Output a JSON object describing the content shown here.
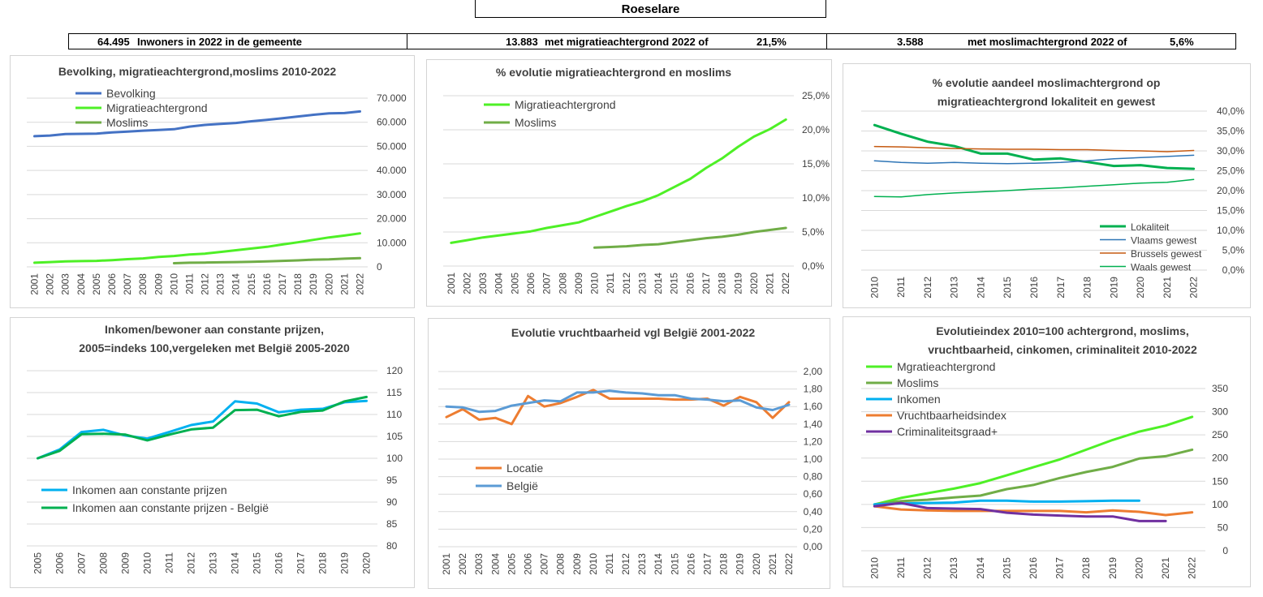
{
  "header": {
    "title": "Roeselare",
    "stats": [
      {
        "value": "64.495",
        "text": "Inwoners in 2022 in de gemeente"
      },
      {
        "value": "13.883",
        "text": "met migratieachtergrond 2022 of",
        "pct": "21,5%"
      },
      {
        "value": "3.588",
        "text": "met moslimachtergrond 2022 of",
        "pct": "5,6%"
      }
    ]
  },
  "colors": {
    "blue": "#4472c4",
    "green": "#4ef026",
    "olive": "#70ad47",
    "darkgreen": "#00b050",
    "orange": "#ed7d31",
    "darkorange": "#c55a11",
    "skyblue": "#00b0f0",
    "lightblue": "#5b9bd5",
    "purple": "#7030a0",
    "grid": "#d9d9d9"
  },
  "chart_data": [
    {
      "type": "line",
      "title": "Bevolking, migratieachtergrond,moslims  2010-2022",
      "x": [
        "2001",
        "2002",
        "2003",
        "2004",
        "2005",
        "2006",
        "2007",
        "2008",
        "2009",
        "2010",
        "2011",
        "2012",
        "2013",
        "2014",
        "2015",
        "2016",
        "2017",
        "2018",
        "2019",
        "2020",
        "2021",
        "2022"
      ],
      "ylim": [
        0,
        70000
      ],
      "yticks": [
        "0",
        "10.000",
        "20.000",
        "30.000",
        "40.000",
        "50.000",
        "60.000",
        "70.000"
      ],
      "legend_position": "top-left",
      "series": [
        {
          "name": "Bevolking",
          "color": "#4472c4",
          "values": [
            54200,
            54500,
            55100,
            55200,
            55300,
            55800,
            56100,
            56500,
            56800,
            57100,
            58200,
            58900,
            59300,
            59700,
            60400,
            61000,
            61700,
            62400,
            63100,
            63700,
            63800,
            64495
          ]
        },
        {
          "name": "Migratieachtergrond",
          "color": "#4ef026",
          "values": [
            1700,
            2000,
            2300,
            2400,
            2500,
            2800,
            3200,
            3500,
            4100,
            4500,
            5100,
            5500,
            6200,
            6900,
            7600,
            8300,
            9300,
            10200,
            11200,
            12200,
            13000,
            13883
          ]
        },
        {
          "name": "Moslims",
          "color": "#70ad47",
          "values": [
            null,
            null,
            null,
            null,
            null,
            null,
            null,
            null,
            null,
            1500,
            1700,
            1800,
            1900,
            2000,
            2100,
            2300,
            2500,
            2700,
            3000,
            3100,
            3400,
            3588
          ]
        }
      ]
    },
    {
      "type": "line",
      "title": "% evolutie migratieachtergrond  en moslims",
      "x": [
        "2001",
        "2002",
        "2003",
        "2004",
        "2005",
        "2006",
        "2007",
        "2008",
        "2009",
        "2010",
        "2011",
        "2012",
        "2013",
        "2014",
        "2015",
        "2016",
        "2017",
        "2018",
        "2019",
        "2020",
        "2021",
        "2022"
      ],
      "ylim": [
        0,
        25
      ],
      "yticks": [
        "0,0%",
        "5,0%",
        "10,0%",
        "15,0%",
        "20,0%",
        "25,0%"
      ],
      "legend_position": "top-left",
      "series": [
        {
          "name": "Migratieachtergrond",
          "color": "#4ef026",
          "values": [
            3.4,
            3.8,
            4.2,
            4.5,
            4.8,
            5.1,
            5.6,
            6.0,
            6.4,
            7.2,
            8.0,
            8.8,
            9.5,
            10.4,
            11.6,
            12.8,
            14.4,
            15.8,
            17.5,
            19.0,
            20.1,
            21.5
          ]
        },
        {
          "name": "Moslims",
          "color": "#70ad47",
          "values": [
            null,
            null,
            null,
            null,
            null,
            null,
            null,
            null,
            null,
            2.7,
            2.8,
            2.9,
            3.1,
            3.2,
            3.5,
            3.8,
            4.1,
            4.3,
            4.6,
            5.0,
            5.3,
            5.6
          ]
        }
      ]
    },
    {
      "type": "line",
      "title": "% evolutie aandeel moslimachtergrond op migratieachtergrond lokaliteit  en gewest",
      "title_lines": [
        "% evolutie aandeel moslimachtergrond op",
        "migratieachtergrond lokaliteit  en gewest"
      ],
      "x": [
        "2010",
        "2011",
        "2012",
        "2013",
        "2014",
        "2015",
        "2016",
        "2017",
        "2018",
        "2019",
        "2020",
        "2021",
        "2022"
      ],
      "ylim": [
        0,
        40
      ],
      "yticks": [
        "0,0%",
        "5,0%",
        "10,0%",
        "15,0%",
        "20,0%",
        "25,0%",
        "30,0%",
        "35,0%",
        "40,0%"
      ],
      "legend_position": "bottom-right",
      "series": [
        {
          "name": "Lokaliteit",
          "color": "#00b050",
          "width": 3,
          "values": [
            36.5,
            34.3,
            32.3,
            31.2,
            29.3,
            29.3,
            27.8,
            28.1,
            27.2,
            26.2,
            26.4,
            25.7,
            25.5
          ]
        },
        {
          "name": "Vlaams gewest",
          "color": "#2e75b6",
          "width": 1.5,
          "values": [
            27.5,
            27.1,
            26.9,
            27.1,
            26.9,
            26.8,
            26.9,
            27.1,
            27.5,
            28.0,
            28.3,
            28.6,
            28.9
          ]
        },
        {
          "name": "Brussels gewest",
          "color": "#c55a11",
          "width": 1.5,
          "values": [
            31.1,
            31.0,
            30.8,
            30.6,
            30.5,
            30.4,
            30.4,
            30.3,
            30.3,
            30.1,
            30.0,
            29.8,
            30.1
          ]
        },
        {
          "name": "Waals gewest",
          "color": "#00b050",
          "width": 1.5,
          "values": [
            18.5,
            18.4,
            19.0,
            19.4,
            19.7,
            20.0,
            20.4,
            20.7,
            21.1,
            21.5,
            21.9,
            22.1,
            22.8
          ]
        }
      ]
    },
    {
      "type": "line",
      "title": "Inkomen/bewoner aan constante prijzen, 2005=indeks 100,vergeleken met België 2005-2020",
      "title_lines": [
        "Inkomen/bewoner aan constante prijzen,",
        "2005=indeks 100,vergeleken  met België  2005-2020"
      ],
      "x": [
        "2005",
        "2006",
        "2007",
        "2008",
        "2009",
        "2010",
        "2011",
        "2012",
        "2013",
        "2014",
        "2015",
        "2016",
        "2017",
        "2018",
        "2019",
        "2020"
      ],
      "ylim": [
        80,
        120
      ],
      "yticks": [
        "80",
        "85",
        "90",
        "95",
        "100",
        "105",
        "110",
        "115",
        "120"
      ],
      "legend_position": "bottom-left",
      "series": [
        {
          "name": "Inkomen aan constante prijzen",
          "color": "#00b0f0",
          "values": [
            100,
            102,
            106,
            106.5,
            105.2,
            104.5,
            106,
            107.6,
            108.4,
            113,
            112.5,
            110.5,
            111.1,
            111.3,
            112.8,
            113.1
          ]
        },
        {
          "name": "Inkomen aan constante prijzen - België",
          "color": "#00b050",
          "values": [
            100,
            101.7,
            105.5,
            105.6,
            105.4,
            104.1,
            105.4,
            106.6,
            107,
            111,
            111.1,
            109.6,
            110.6,
            110.9,
            113,
            114
          ]
        }
      ]
    },
    {
      "type": "line",
      "title": "Evolutie vruchtbaarheid vgl België 2001-2022",
      "x": [
        "2001",
        "2002",
        "2003",
        "2004",
        "2005",
        "2006",
        "2007",
        "2008",
        "2009",
        "2010",
        "2011",
        "2012",
        "2013",
        "2014",
        "2015",
        "2016",
        "2017",
        "2018",
        "2019",
        "2020",
        "2021",
        "2022"
      ],
      "ylim": [
        0,
        2
      ],
      "yticks": [
        "0,00",
        "0,20",
        "0,40",
        "0,60",
        "0,80",
        "1,00",
        "1,20",
        "1,40",
        "1,60",
        "1,80",
        "2,00"
      ],
      "legend_position": "bottom-left",
      "series": [
        {
          "name": "Locatie",
          "color": "#ed7d31",
          "values": [
            1.48,
            1.57,
            1.45,
            1.47,
            1.4,
            1.72,
            1.6,
            1.64,
            1.71,
            1.79,
            1.69,
            1.69,
            1.69,
            1.69,
            1.68,
            1.68,
            1.69,
            1.61,
            1.71,
            1.65,
            1.47,
            1.65
          ]
        },
        {
          "name": "België",
          "color": "#5b9bd5",
          "values": [
            1.6,
            1.59,
            1.54,
            1.55,
            1.61,
            1.64,
            1.67,
            1.66,
            1.76,
            1.76,
            1.78,
            1.76,
            1.75,
            1.73,
            1.73,
            1.69,
            1.68,
            1.66,
            1.67,
            1.59,
            1.56,
            1.62
          ]
        }
      ]
    },
    {
      "type": "line",
      "title": "Evolutieindex 2010=100 achtergrond, moslims, vruchtbaarheid, cinkomen, criminaliteit  2010-2022",
      "title_lines": [
        "Evolutieindex 2010=100 achtergrond, moslims,",
        "vruchtbaarheid, cinkomen, criminaliteit  2010-2022"
      ],
      "x": [
        "2010",
        "2011",
        "2012",
        "2013",
        "2014",
        "2015",
        "2016",
        "2017",
        "2018",
        "2019",
        "2020",
        "2021",
        "2022"
      ],
      "ylim": [
        0,
        350
      ],
      "yticks": [
        "0",
        "50",
        "100",
        "150",
        "200",
        "250",
        "300",
        "350"
      ],
      "legend_position": "top-left",
      "series": [
        {
          "name": "Mgratieachtergrond",
          "color": "#4ef026",
          "values": [
            100,
            114,
            124,
            134,
            146,
            163,
            180,
            197,
            218,
            239,
            257,
            270,
            289
          ]
        },
        {
          "name": "Moslims",
          "color": "#70ad47",
          "values": [
            100,
            107,
            110,
            115,
            119,
            133,
            142,
            157,
            170,
            181,
            199,
            204,
            218
          ]
        },
        {
          "name": "Inkomen",
          "color": "#00b0f0",
          "values": [
            100,
            102,
            103,
            104,
            108,
            108,
            106,
            106,
            107,
            108,
            108,
            null,
            null
          ]
        },
        {
          "name": "Vruchtbaarheidsindex",
          "color": "#ed7d31",
          "values": [
            96,
            89,
            87,
            86,
            86,
            86,
            86,
            86,
            83,
            87,
            84,
            77,
            83
          ]
        },
        {
          "name": "Criminaliteitsgraad+",
          "color": "#7030a0",
          "values": [
            96,
            103,
            92,
            91,
            90,
            82,
            78,
            76,
            74,
            74,
            64,
            64,
            null
          ]
        }
      ]
    }
  ]
}
